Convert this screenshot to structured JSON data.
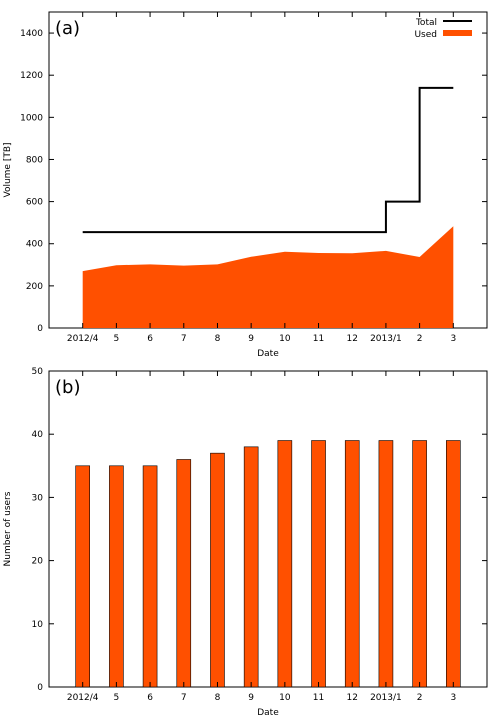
{
  "colors": {
    "used": "#ff5000",
    "total": "#000000",
    "bar": "#ff5000"
  },
  "chart_data": [
    {
      "type": "area",
      "panel_label": "(a)",
      "xlabel": "Date",
      "ylabel": "Volume [TB]",
      "categories": [
        "2012/4",
        "5",
        "6",
        "7",
        "8",
        "9",
        "10",
        "11",
        "12",
        "2013/1",
        "2",
        "3"
      ],
      "ylim": [
        0,
        1500
      ],
      "yticks": [
        0,
        200,
        400,
        600,
        800,
        1000,
        1200,
        1400
      ],
      "legend_position": "top-right",
      "series": [
        {
          "name": "Total",
          "style": "step-line",
          "values": [
            455,
            455,
            455,
            455,
            455,
            455,
            455,
            455,
            455,
            600,
            1140,
            1140
          ]
        },
        {
          "name": "Used",
          "style": "filled-area",
          "values": [
            270,
            298,
            302,
            296,
            302,
            338,
            362,
            356,
            355,
            366,
            337,
            483
          ]
        }
      ]
    },
    {
      "type": "bar",
      "panel_label": "(b)",
      "xlabel": "Date",
      "ylabel": "Number of users",
      "categories": [
        "2012/4",
        "5",
        "6",
        "7",
        "8",
        "9",
        "10",
        "11",
        "12",
        "2013/1",
        "2",
        "3"
      ],
      "ylim": [
        0,
        50
      ],
      "yticks": [
        0,
        10,
        20,
        30,
        40,
        50
      ],
      "values": [
        35,
        35,
        35,
        36,
        37,
        38,
        39,
        39,
        39,
        39,
        39,
        39
      ]
    }
  ]
}
